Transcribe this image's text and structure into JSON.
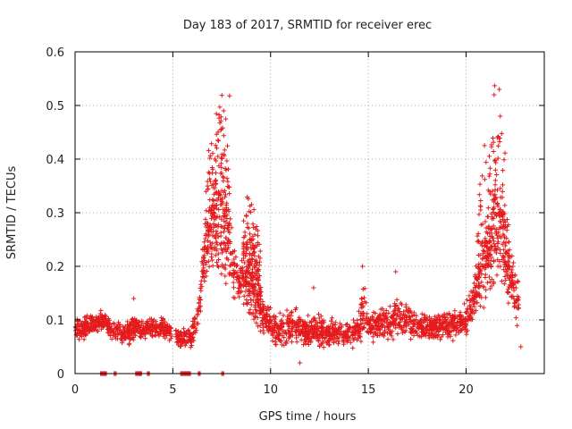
{
  "chart_data": {
    "type": "scatter",
    "title": "Day 183 of 2017, SRMTID for receiver erec",
    "xlabel": "GPS time / hours",
    "ylabel": "SRMTID / TECUs",
    "xlim": [
      0,
      24
    ],
    "ylim": [
      0,
      0.6
    ],
    "xticks": [
      0,
      5,
      10,
      15,
      20
    ],
    "yticks": [
      0,
      0.1,
      0.2,
      0.3,
      0.4,
      0.5,
      0.6
    ],
    "grid": true,
    "marker": "+",
    "color": "#e41a1c",
    "envelope_x": [
      0.0,
      0.5,
      1.0,
      1.5,
      2.0,
      2.5,
      3.0,
      3.5,
      4.0,
      4.5,
      5.0,
      5.5,
      6.0,
      6.3,
      6.6,
      6.9,
      7.2,
      7.5,
      7.8,
      8.1,
      8.4,
      8.7,
      9.0,
      9.3,
      9.6,
      10.0,
      10.5,
      11.0,
      11.5,
      12.0,
      12.5,
      13.0,
      13.5,
      14.0,
      14.5,
      14.8,
      15.0,
      15.5,
      16.0,
      16.5,
      17.0,
      17.5,
      18.0,
      18.5,
      19.0,
      19.5,
      20.0,
      20.3,
      20.6,
      20.9,
      21.2,
      21.5,
      21.8,
      22.1,
      22.4,
      22.7
    ],
    "envelope_low": [
      0.05,
      0.06,
      0.07,
      0.08,
      0.05,
      0.05,
      0.05,
      0.06,
      0.06,
      0.06,
      0.05,
      0.04,
      0.04,
      0.08,
      0.15,
      0.2,
      0.2,
      0.17,
      0.15,
      0.13,
      0.12,
      0.12,
      0.11,
      0.09,
      0.07,
      0.05,
      0.04,
      0.04,
      0.04,
      0.04,
      0.04,
      0.04,
      0.04,
      0.04,
      0.04,
      0.05,
      0.05,
      0.05,
      0.05,
      0.05,
      0.05,
      0.05,
      0.05,
      0.05,
      0.05,
      0.06,
      0.06,
      0.08,
      0.1,
      0.12,
      0.14,
      0.16,
      0.17,
      0.13,
      0.1,
      0.07
    ],
    "envelope_high": [
      0.12,
      0.11,
      0.12,
      0.12,
      0.11,
      0.1,
      0.12,
      0.11,
      0.11,
      0.11,
      0.1,
      0.09,
      0.1,
      0.15,
      0.28,
      0.35,
      0.4,
      0.48,
      0.38,
      0.26,
      0.22,
      0.24,
      0.3,
      0.22,
      0.15,
      0.13,
      0.12,
      0.13,
      0.13,
      0.12,
      0.12,
      0.11,
      0.11,
      0.11,
      0.12,
      0.2,
      0.13,
      0.13,
      0.14,
      0.15,
      0.14,
      0.13,
      0.12,
      0.12,
      0.13,
      0.13,
      0.14,
      0.17,
      0.25,
      0.33,
      0.34,
      0.45,
      0.38,
      0.29,
      0.22,
      0.19
    ],
    "outliers": [
      {
        "x": 7.9,
        "y": 0.518
      },
      {
        "x": 21.7,
        "y": 0.53
      },
      {
        "x": 21.75,
        "y": 0.48
      },
      {
        "x": 7.6,
        "y": 0.49
      },
      {
        "x": 21.6,
        "y": 0.44
      },
      {
        "x": 14.7,
        "y": 0.2
      },
      {
        "x": 16.4,
        "y": 0.19
      },
      {
        "x": 3.0,
        "y": 0.14
      },
      {
        "x": 11.5,
        "y": 0.02
      },
      {
        "x": 22.8,
        "y": 0.05
      },
      {
        "x": 12.2,
        "y": 0.16
      }
    ],
    "baseline_segments": [
      [
        1.3,
        1.6
      ],
      [
        2.0,
        2.1
      ],
      [
        3.1,
        3.4
      ],
      [
        3.7,
        3.8
      ],
      [
        5.4,
        5.9
      ],
      [
        6.3,
        6.4
      ],
      [
        7.5,
        7.6
      ]
    ]
  }
}
